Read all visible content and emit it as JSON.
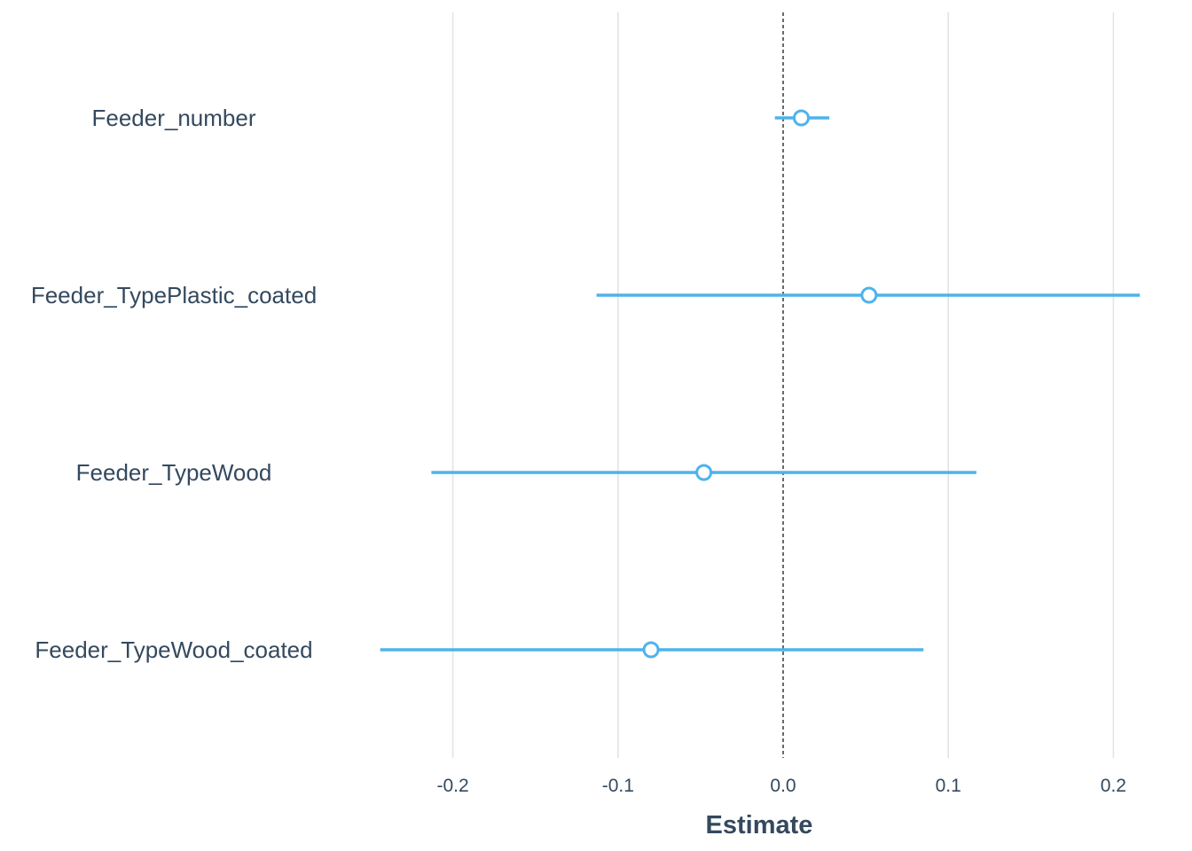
{
  "chart_data": {
    "type": "scatter",
    "subtype": "coefficient-plot",
    "title": "",
    "xlabel": "Estimate",
    "ylabel": "",
    "xlim": [
      -0.25,
      0.215
    ],
    "x_ticks": [
      -0.2,
      -0.1,
      0.0,
      0.1,
      0.2
    ],
    "x_tick_labels": [
      "-0.2",
      "-0.1",
      "0.0",
      "0.1",
      "0.2"
    ],
    "grid": "vertical major",
    "reference_line": 0.0,
    "color": "#4db3ec",
    "terms": [
      {
        "label": "Feeder_number",
        "estimate": 0.011,
        "low": -0.005,
        "high": 0.028
      },
      {
        "label": "Feeder_TypePlastic_coated",
        "estimate": 0.052,
        "low": -0.113,
        "high": 0.216
      },
      {
        "label": "Feeder_TypeWood",
        "estimate": -0.048,
        "low": -0.213,
        "high": 0.117
      },
      {
        "label": "Feeder_TypeWood_coated",
        "estimate": -0.08,
        "low": -0.244,
        "high": 0.085
      }
    ]
  }
}
